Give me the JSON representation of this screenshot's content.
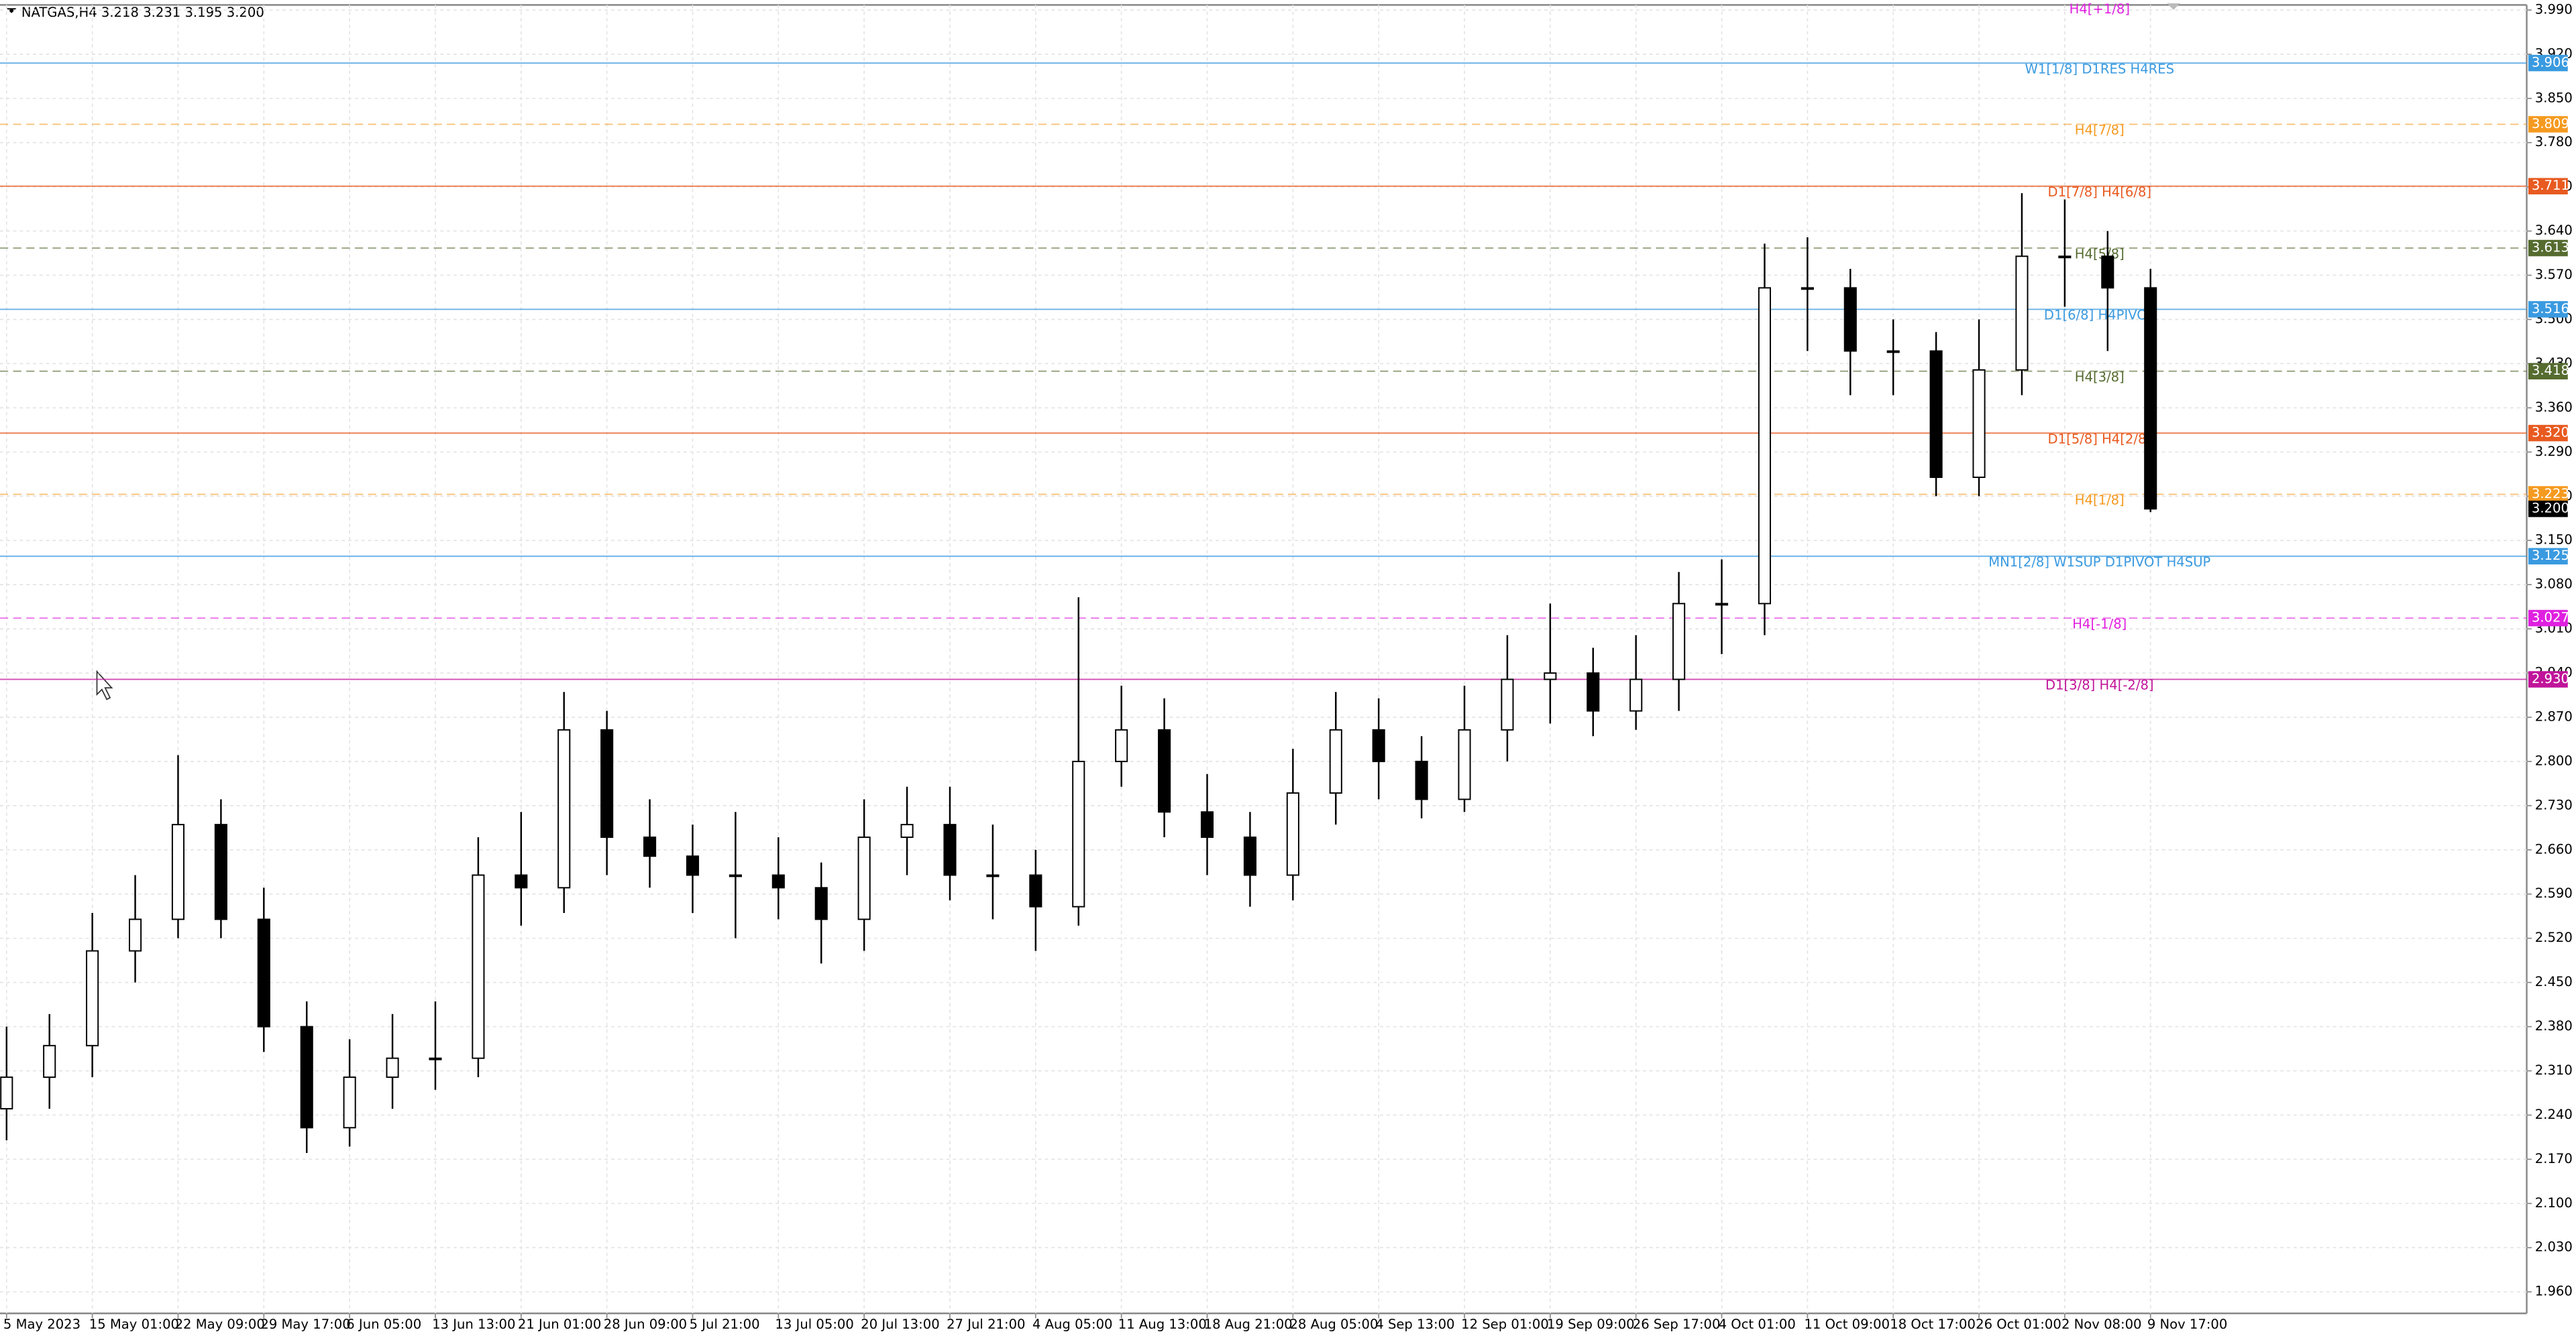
{
  "chart_data": {
    "type": "candlestick",
    "title": "NATGAS,H4  3.218 3.231 3.195 3.200",
    "color": "#000000",
    "grid": true,
    "categories": [
      "5 May 2023",
      null,
      "15 May 01:00",
      null,
      "22 May 09:00",
      null,
      "29 May 17:00",
      null,
      "6 Jun 05:00",
      null,
      "13 Jun 13:00",
      null,
      "21 Jun 01:00",
      null,
      "28 Jun 09:00",
      null,
      "5 Jul 21:00",
      null,
      "13 Jul 05:00",
      null,
      "20 Jul 13:00",
      null,
      "27 Jul 21:00",
      null,
      "4 Aug 05:00",
      null,
      "11 Aug 13:00",
      null,
      "18 Aug 21:00",
      null,
      "28 Aug 05:00",
      null,
      "4 Sep 13:00",
      null,
      "12 Sep 01:00",
      null,
      "19 Sep 09:00",
      null,
      "26 Sep 17:00",
      null,
      "4 Oct 01:00",
      null,
      "11 Oct 09:00",
      null,
      "18 Oct 17:00",
      null,
      "26 Oct 01:00",
      null,
      "2 Nov 08:00",
      null,
      "9 Nov 17:00"
    ],
    "open": [
      2.25,
      2.3,
      2.35,
      2.5,
      2.55,
      2.7,
      2.55,
      2.38,
      2.22,
      2.3,
      2.33,
      2.33,
      2.62,
      2.6,
      2.85,
      2.68,
      2.65,
      2.62,
      2.62,
      2.6,
      2.55,
      2.68,
      2.7,
      2.62,
      2.62,
      2.57,
      2.8,
      2.85,
      2.72,
      2.68,
      2.62,
      2.75,
      2.85,
      2.8,
      2.74,
      2.85,
      2.93,
      2.94,
      2.88,
      2.93,
      3.05,
      3.05,
      3.55,
      3.55,
      3.45,
      3.45,
      3.25,
      3.42,
      3.6,
      3.6,
      3.55
    ],
    "high": [
      2.38,
      2.4,
      2.56,
      2.62,
      2.81,
      2.74,
      2.6,
      2.42,
      2.36,
      2.4,
      2.42,
      2.68,
      2.72,
      2.91,
      2.88,
      2.74,
      2.7,
      2.72,
      2.68,
      2.64,
      2.74,
      2.76,
      2.76,
      2.7,
      2.66,
      3.06,
      2.92,
      2.9,
      2.78,
      2.72,
      2.82,
      2.91,
      2.9,
      2.84,
      2.92,
      3.0,
      3.05,
      2.98,
      3.0,
      3.1,
      3.12,
      3.62,
      3.63,
      3.58,
      3.5,
      3.48,
      3.5,
      3.7,
      3.69,
      3.64,
      3.58
    ],
    "low": [
      2.2,
      2.25,
      2.3,
      2.45,
      2.52,
      2.52,
      2.34,
      2.18,
      2.19,
      2.25,
      2.28,
      2.3,
      2.54,
      2.56,
      2.62,
      2.6,
      2.56,
      2.52,
      2.55,
      2.48,
      2.5,
      2.62,
      2.58,
      2.55,
      2.5,
      2.54,
      2.76,
      2.68,
      2.62,
      2.57,
      2.58,
      2.7,
      2.74,
      2.71,
      2.72,
      2.8,
      2.86,
      2.84,
      2.85,
      2.88,
      2.97,
      3.0,
      3.45,
      3.38,
      3.38,
      3.22,
      3.22,
      3.38,
      3.52,
      3.45,
      3.195
    ],
    "close": [
      2.3,
      2.35,
      2.5,
      2.55,
      2.7,
      2.55,
      2.38,
      2.22,
      2.3,
      2.33,
      2.33,
      2.62,
      2.6,
      2.85,
      2.68,
      2.65,
      2.62,
      2.62,
      2.6,
      2.55,
      2.68,
      2.7,
      2.62,
      2.62,
      2.57,
      2.8,
      2.85,
      2.72,
      2.68,
      2.62,
      2.75,
      2.85,
      2.8,
      2.74,
      2.85,
      2.93,
      2.94,
      2.88,
      2.93,
      3.05,
      3.05,
      3.55,
      3.55,
      3.45,
      3.45,
      3.25,
      3.42,
      3.6,
      3.6,
      3.55,
      3.2
    ],
    "ylim": [
      1.926,
      3.998
    ],
    "yticks": [
      {
        "value": 3.99,
        "label": "3.990"
      },
      {
        "value": 3.92,
        "label": "3.920"
      },
      {
        "value": 3.85,
        "label": "3.850"
      },
      {
        "value": 3.78,
        "label": "3.780"
      },
      {
        "value": 3.71,
        "label": "3.710"
      },
      {
        "value": 3.64,
        "label": "3.640"
      },
      {
        "value": 3.57,
        "label": "3.570"
      },
      {
        "value": 3.5,
        "label": "3.500"
      },
      {
        "value": 3.43,
        "label": "3.430"
      },
      {
        "value": 3.36,
        "label": "3.360"
      },
      {
        "value": 3.29,
        "label": "3.290"
      },
      {
        "value": 3.22,
        "label": "3.220"
      },
      {
        "value": 3.15,
        "label": "3.150"
      },
      {
        "value": 3.08,
        "label": "3.080"
      },
      {
        "value": 3.01,
        "label": "3.010"
      },
      {
        "value": 2.94,
        "label": "2.940"
      },
      {
        "value": 2.87,
        "label": "2.870"
      },
      {
        "value": 2.8,
        "label": "2.800"
      },
      {
        "value": 2.73,
        "label": "2.730"
      },
      {
        "value": 2.66,
        "label": "2.660"
      },
      {
        "value": 2.59,
        "label": "2.590"
      },
      {
        "value": 2.52,
        "label": "2.520"
      },
      {
        "value": 2.45,
        "label": "2.450"
      },
      {
        "value": 2.38,
        "label": "2.380"
      },
      {
        "value": 2.31,
        "label": "2.310"
      },
      {
        "value": 2.24,
        "label": "2.240"
      },
      {
        "value": 2.17,
        "label": "2.170"
      },
      {
        "value": 2.1,
        "label": "2.100"
      },
      {
        "value": 2.03,
        "label": "2.030"
      },
      {
        "value": 1.96,
        "label": "1.960"
      }
    ],
    "levels": [
      {
        "value": 3.906,
        "value_label": "3.906",
        "label": "W1[1/8] D1RES H4RES",
        "color": "#3a9ae0",
        "dashed": false
      },
      {
        "value": 3.809,
        "value_label": "3.809",
        "label": "H4[7/8]",
        "color": "#f59a20",
        "dashed": true
      },
      {
        "value": 3.711,
        "value_label": "3.711",
        "label": "D1[7/8] H4[6/8]",
        "color": "#e85a20",
        "dashed": false
      },
      {
        "value": 3.613,
        "value_label": "3.613",
        "label": "H4[5/8]",
        "color": "#556b2f",
        "dashed": true
      },
      {
        "value": 3.516,
        "value_label": "3.516",
        "label": "D1[6/8] H4PIVOT",
        "color": "#3a9ae0",
        "dashed": false
      },
      {
        "value": 3.418,
        "value_label": "3.418",
        "label": "H4[3/8]",
        "color": "#556b2f",
        "dashed": true
      },
      {
        "value": 3.32,
        "value_label": "3.320",
        "label": "D1[5/8] H4[2/8]",
        "color": "#e85a20",
        "dashed": false
      },
      {
        "value": 3.223,
        "value_label": "3.223",
        "label": "H4[1/8]",
        "color": "#f59a20",
        "dashed": true
      },
      {
        "value": 3.125,
        "value_label": "3.125",
        "label": "MN1[2/8] W1SUP D1PIVOT H4SUP",
        "color": "#3a9ae0",
        "dashed": false
      },
      {
        "value": 3.027,
        "value_label": "3.027",
        "label": "H4[-1/8]",
        "color": "#e020e0",
        "dashed": true
      },
      {
        "value": 2.93,
        "value_label": "2.930",
        "label": "D1[3/8] H4[-2/8]",
        "color": "#c0149a",
        "dashed": false
      }
    ],
    "annotations": [
      {
        "text": "H4[+1/8]",
        "color": "#e020e0"
      }
    ],
    "current_price_label": "3.200"
  }
}
